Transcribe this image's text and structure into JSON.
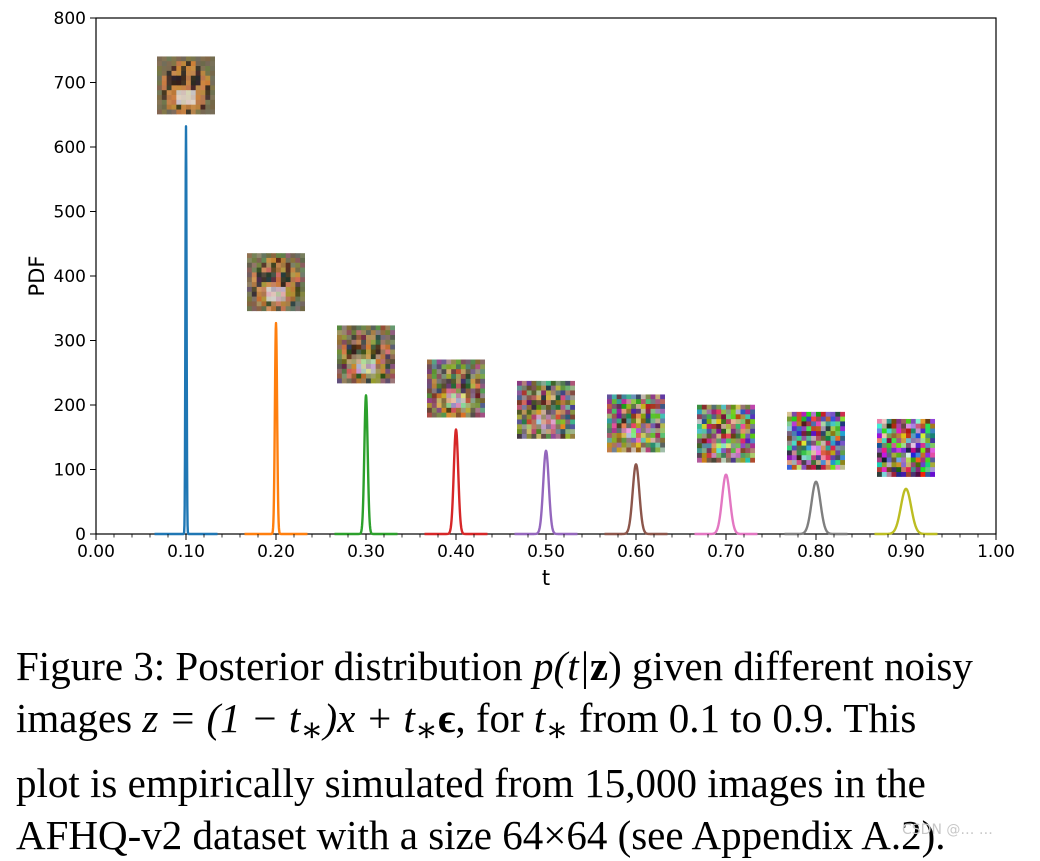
{
  "chart_data": {
    "type": "line",
    "xlabel": "t",
    "ylabel": "PDF",
    "xlim": [
      0.0,
      1.0
    ],
    "ylim": [
      0,
      800
    ],
    "xticks": [
      "0.00",
      "0.10",
      "0.20",
      "0.30",
      "0.40",
      "0.50",
      "0.60",
      "0.70",
      "0.80",
      "0.90",
      "1.00"
    ],
    "yticks": [
      "0",
      "100",
      "200",
      "300",
      "400",
      "500",
      "600",
      "700",
      "800"
    ],
    "grid": false,
    "legend": "none",
    "series": [
      {
        "peak_t": 0.1,
        "peak_pdf": 632,
        "color": "#1f77b4"
      },
      {
        "peak_t": 0.2,
        "peak_pdf": 327,
        "color": "#ff7f0e"
      },
      {
        "peak_t": 0.3,
        "peak_pdf": 215,
        "color": "#2ca02c"
      },
      {
        "peak_t": 0.4,
        "peak_pdf": 162,
        "color": "#d62728"
      },
      {
        "peak_t": 0.5,
        "peak_pdf": 129,
        "color": "#9467bd"
      },
      {
        "peak_t": 0.6,
        "peak_pdf": 108,
        "color": "#8c564b"
      },
      {
        "peak_t": 0.7,
        "peak_pdf": 92,
        "color": "#e377c2"
      },
      {
        "peak_t": 0.8,
        "peak_pdf": 81,
        "color": "#7f7f7f"
      },
      {
        "peak_t": 0.9,
        "peak_pdf": 70,
        "color": "#bcbd22"
      }
    ],
    "insets": [
      {
        "t_star": 0.1,
        "noise": 0.1,
        "icon": "tiger-image"
      },
      {
        "t_star": 0.2,
        "noise": 0.2,
        "icon": "tiger-image"
      },
      {
        "t_star": 0.3,
        "noise": 0.3,
        "icon": "tiger-image"
      },
      {
        "t_star": 0.4,
        "noise": 0.4,
        "icon": "tiger-image"
      },
      {
        "t_star": 0.5,
        "noise": 0.5,
        "icon": "tiger-image"
      },
      {
        "t_star": 0.6,
        "noise": 0.6,
        "icon": "tiger-image"
      },
      {
        "t_star": 0.7,
        "noise": 0.7,
        "icon": "tiger-image"
      },
      {
        "t_star": 0.8,
        "noise": 0.8,
        "icon": "tiger-image"
      },
      {
        "t_star": 0.9,
        "noise": 0.9,
        "icon": "tiger-image"
      }
    ]
  },
  "caption": {
    "line1_a": "Figure 3: Posterior distribution ",
    "line1_math": "p(t|",
    "line1_bold": "z",
    "line1_math2": ")",
    "line1_b": " given different noisy",
    "line2_a": "images ",
    "line2_math": "z = (1 − t",
    "line2_sub": "∗",
    "line2_math2": ")x + t",
    "line2_sub2": "∗",
    "line2_eps": "ϵ",
    "line2_b": ", for ",
    "line2_t": "t",
    "line2_sub3": "∗",
    "line2_c": " from 0.1 to 0.9. This",
    "line3": "plot is empirically simulated from 15,000 images in the",
    "line4": "AFHQ-v2 dataset with a size 64×64 (see Appendix A.2)."
  },
  "watermark": "CSDN @… …"
}
